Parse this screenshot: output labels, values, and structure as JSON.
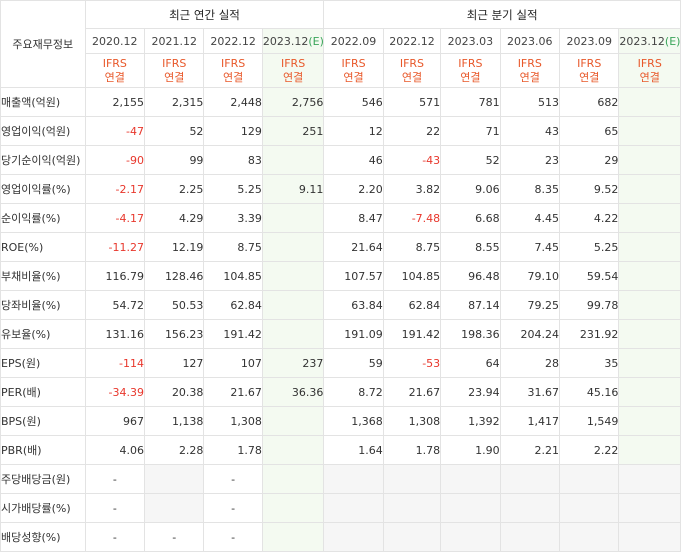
{
  "header": {
    "corner_label": "주요재무정보",
    "annual_title": "최근 연간 실적",
    "quarterly_title": "최근 분기 실적",
    "estimate_mark": "(E)",
    "periods": [
      {
        "label": "2020.12",
        "est": false,
        "ifrs_line1": "IFRS",
        "ifrs_line2": "연결"
      },
      {
        "label": "2021.12",
        "est": false,
        "ifrs_line1": "IFRS",
        "ifrs_line2": "연결"
      },
      {
        "label": "2022.12",
        "est": false,
        "ifrs_line1": "IFRS",
        "ifrs_line2": "연결"
      },
      {
        "label": "2023.12",
        "est": true,
        "ifrs_line1": "IFRS",
        "ifrs_line2": "연결"
      },
      {
        "label": "2022.09",
        "est": false,
        "ifrs_line1": "IFRS",
        "ifrs_line2": "연결"
      },
      {
        "label": "2022.12",
        "est": false,
        "ifrs_line1": "IFRS",
        "ifrs_line2": "연결"
      },
      {
        "label": "2023.03",
        "est": false,
        "ifrs_line1": "IFRS",
        "ifrs_line2": "연결"
      },
      {
        "label": "2023.06",
        "est": false,
        "ifrs_line1": "IFRS",
        "ifrs_line2": "연결"
      },
      {
        "label": "2023.09",
        "est": false,
        "ifrs_line1": "IFRS",
        "ifrs_line2": "연결"
      },
      {
        "label": "2023.12",
        "est": true,
        "ifrs_line1": "IFRS",
        "ifrs_line2": "연결"
      }
    ]
  },
  "colors": {
    "ifrs_text": "#e8582a",
    "negative": "#e8372c",
    "estimate_bg": "#f4faf1",
    "estimate_mark": "#3aa55a"
  },
  "rows": [
    {
      "label": "매출액(억원)",
      "values": [
        "2,155",
        "2,315",
        "2,448",
        "2,756",
        "546",
        "571",
        "781",
        "513",
        "682",
        ""
      ]
    },
    {
      "label": "영업이익(억원)",
      "values": [
        "-47",
        "52",
        "129",
        "251",
        "12",
        "22",
        "71",
        "43",
        "65",
        ""
      ]
    },
    {
      "label": "당기순이익(억원)",
      "values": [
        "-90",
        "99",
        "83",
        "",
        "46",
        "-43",
        "52",
        "23",
        "29",
        ""
      ]
    },
    {
      "label": "영업이익률(%)",
      "values": [
        "-2.17",
        "2.25",
        "5.25",
        "9.11",
        "2.20",
        "3.82",
        "9.06",
        "8.35",
        "9.52",
        ""
      ]
    },
    {
      "label": "순이익률(%)",
      "values": [
        "-4.17",
        "4.29",
        "3.39",
        "",
        "8.47",
        "-7.48",
        "6.68",
        "4.45",
        "4.22",
        ""
      ]
    },
    {
      "label": "ROE(%)",
      "values": [
        "-11.27",
        "12.19",
        "8.75",
        "",
        "21.64",
        "8.75",
        "8.55",
        "7.45",
        "5.25",
        ""
      ]
    },
    {
      "label": "부채비율(%)",
      "values": [
        "116.79",
        "128.46",
        "104.85",
        "",
        "107.57",
        "104.85",
        "96.48",
        "79.10",
        "59.54",
        ""
      ]
    },
    {
      "label": "당좌비율(%)",
      "values": [
        "54.72",
        "50.53",
        "62.84",
        "",
        "63.84",
        "62.84",
        "87.14",
        "79.25",
        "99.78",
        ""
      ]
    },
    {
      "label": "유보율(%)",
      "values": [
        "131.16",
        "156.23",
        "191.42",
        "",
        "191.09",
        "191.42",
        "198.36",
        "204.24",
        "231.92",
        ""
      ]
    },
    {
      "label": "EPS(원)",
      "values": [
        "-114",
        "127",
        "107",
        "237",
        "59",
        "-53",
        "64",
        "28",
        "35",
        ""
      ]
    },
    {
      "label": "PER(배)",
      "values": [
        "-34.39",
        "20.38",
        "21.67",
        "36.36",
        "8.72",
        "21.67",
        "23.94",
        "31.67",
        "45.16",
        ""
      ]
    },
    {
      "label": "BPS(원)",
      "values": [
        "967",
        "1,138",
        "1,308",
        "",
        "1,368",
        "1,308",
        "1,392",
        "1,417",
        "1,549",
        ""
      ]
    },
    {
      "label": "PBR(배)",
      "values": [
        "4.06",
        "2.28",
        "1.78",
        "",
        "1.64",
        "1.78",
        "1.90",
        "2.21",
        "2.22",
        ""
      ]
    },
    {
      "label": "주당배당금(원)",
      "values": [
        "-",
        null,
        "-",
        "",
        null,
        null,
        null,
        null,
        null,
        null
      ]
    },
    {
      "label": "시가배당률(%)",
      "values": [
        "-",
        null,
        "-",
        "",
        null,
        null,
        null,
        null,
        null,
        null
      ]
    },
    {
      "label": "배당성향(%)",
      "values": [
        "-",
        "-",
        "-",
        "",
        null,
        null,
        null,
        null,
        null,
        null
      ]
    }
  ]
}
